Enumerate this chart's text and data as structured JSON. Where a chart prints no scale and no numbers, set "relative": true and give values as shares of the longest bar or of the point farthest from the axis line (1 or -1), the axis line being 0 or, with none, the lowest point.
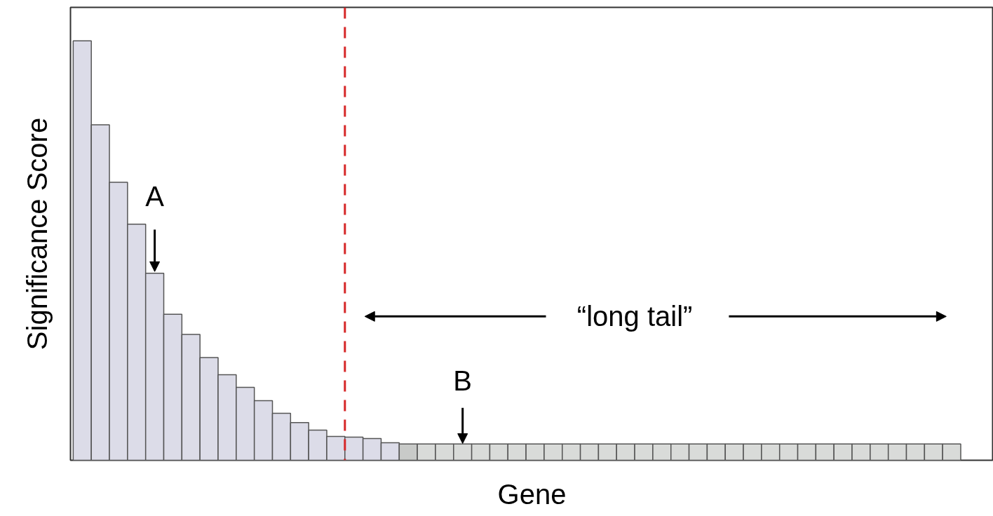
{
  "chart_data": {
    "type": "bar",
    "relative": true,
    "xlabel": "Gene",
    "ylabel": "Significance Score",
    "categories": [
      null,
      null,
      null,
      null,
      null,
      null,
      null,
      null,
      null,
      null,
      null,
      null,
      null,
      null,
      null,
      null,
      null,
      null,
      null,
      null,
      null,
      null,
      null,
      null,
      null,
      null,
      null,
      null,
      null,
      null,
      null,
      null,
      null,
      null,
      null,
      null,
      null,
      null,
      null,
      null,
      null,
      null,
      null,
      null,
      null,
      null,
      null,
      null,
      null
    ],
    "values": [
      1,
      0.8,
      0.663,
      0.563,
      0.446,
      0.348,
      0.3,
      0.245,
      0.204,
      0.174,
      0.142,
      0.112,
      0.09,
      0.072,
      0.057,
      0.055,
      0.052,
      0.042,
      0.039,
      0.039,
      0.039,
      0.039,
      0.039,
      0.039,
      0.039,
      0.039,
      0.039,
      0.039,
      0.039,
      0.039,
      0.039,
      0.039,
      0.039,
      0.039,
      0.039,
      0.039,
      0.039,
      0.039,
      0.039,
      0.039,
      0.039,
      0.039,
      0.039,
      0.039,
      0.039,
      0.039,
      0.039,
      0.039,
      0.039
    ],
    "colors": [
      "#dcdce8",
      "#dcdce8",
      "#dcdce8",
      "#dcdce8",
      "#dcdce8",
      "#dcdce8",
      "#dcdce8",
      "#dcdce8",
      "#dcdce8",
      "#dcdce8",
      "#dcdce8",
      "#dcdce8",
      "#dcdce8",
      "#dcdce8",
      "#dcdce8",
      "#dcdce8",
      "#dcdce8",
      "#dcdce8",
      "#c8cac8",
      "#d9dbd9",
      "#d9dbd9",
      "#d9dbd9",
      "#d9dbd9",
      "#d9dbd9",
      "#d9dbd9",
      "#d9dbd9",
      "#d9dbd9",
      "#d9dbd9",
      "#d9dbd9",
      "#d9dbd9",
      "#d9dbd9",
      "#d9dbd9",
      "#d9dbd9",
      "#d9dbd9",
      "#d9dbd9",
      "#d9dbd9",
      "#d9dbd9",
      "#d9dbd9",
      "#d9dbd9",
      "#d9dbd9",
      "#d9dbd9",
      "#d9dbd9",
      "#d9dbd9",
      "#d9dbd9",
      "#d9dbd9",
      "#d9dbd9",
      "#d9dbd9",
      "#d9dbd9",
      "#d9dbd9"
    ],
    "annotations": [
      "A",
      "B",
      "“long tail”"
    ],
    "grid": false
  }
}
